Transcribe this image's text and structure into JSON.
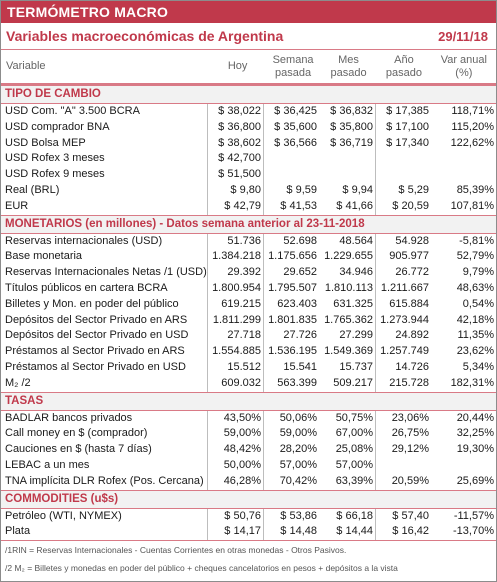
{
  "banner": "TERMÓMETRO MACRO",
  "title": "Variables macroeconómicas de Argentina",
  "date": "29/11/18",
  "columns": [
    "Variable",
    "Hoy",
    "Semana pasada",
    "Mes pasado",
    "Año pasado",
    "Var anual (%)"
  ],
  "sections": [
    {
      "title": "TIPO DE CAMBIO",
      "rows": [
        [
          "USD Com. \"A\" 3.500 BCRA",
          "$ 38,022",
          "$ 36,425",
          "$ 36,832",
          "$ 17,385",
          "118,71%"
        ],
        [
          "USD comprador BNA",
          "$ 36,800",
          "$ 35,600",
          "$ 35,800",
          "$ 17,100",
          "115,20%"
        ],
        [
          "USD Bolsa MEP",
          "$ 38,602",
          "$ 36,566",
          "$ 36,719",
          "$ 17,340",
          "122,62%"
        ],
        [
          "USD Rofex 3 meses",
          "$ 42,700",
          "",
          "",
          "",
          ""
        ],
        [
          "USD Rofex 9 meses",
          "$ 51,500",
          "",
          "",
          "",
          ""
        ],
        [
          "Real (BRL)",
          "$ 9,80",
          "$ 9,59",
          "$ 9,94",
          "$ 5,29",
          "85,39%"
        ],
        [
          "EUR",
          "$ 42,79",
          "$ 41,53",
          "$ 41,66",
          "$ 20,59",
          "107,81%"
        ]
      ]
    },
    {
      "title": "MONETARIOS (en millones) - Datos semana anterior al 23-11-2018",
      "rows": [
        [
          "Reservas internacionales (USD)",
          "51.736",
          "52.698",
          "48.564",
          "54.928",
          "-5,81%"
        ],
        [
          "Base monetaria",
          "1.384.218",
          "1.175.656",
          "1.229.655",
          "905.977",
          "52,79%"
        ],
        [
          "Reservas Internacionales Netas /1 (USD)",
          "29.392",
          "29.652",
          "34.946",
          "26.772",
          "9,79%"
        ],
        [
          "Títulos públicos en cartera BCRA",
          "1.800.954",
          "1.795.507",
          "1.810.113",
          "1.211.667",
          "48,63%"
        ],
        [
          "Billetes y Mon. en poder del público",
          "619.215",
          "623.403",
          "631.325",
          "615.884",
          "0,54%"
        ],
        [
          "Depósitos del Sector Privado en ARS",
          "1.811.299",
          "1.801.835",
          "1.765.362",
          "1.273.944",
          "42,18%"
        ],
        [
          "Depósitos del Sector Privado en USD",
          "27.718",
          "27.726",
          "27.299",
          "24.892",
          "11,35%"
        ],
        [
          "Préstamos al Sector Privado en ARS",
          "1.554.885",
          "1.536.195",
          "1.549.369",
          "1.257.749",
          "23,62%"
        ],
        [
          "Préstamos al Sector Privado en USD",
          "15.512",
          "15.541",
          "15.737",
          "14.726",
          "5,34%"
        ],
        [
          "M₂ /2",
          "609.032",
          "563.399",
          "509.217",
          "215.728",
          "182,31%"
        ]
      ]
    },
    {
      "title": "TASAS",
      "rows": [
        [
          "BADLAR bancos privados",
          "43,50%",
          "50,06%",
          "50,75%",
          "23,06%",
          "20,44%"
        ],
        [
          "Call money en $ (comprador)",
          "59,00%",
          "59,00%",
          "67,00%",
          "26,75%",
          "32,25%"
        ],
        [
          "Cauciones en $ (hasta 7 días)",
          "48,42%",
          "28,20%",
          "25,08%",
          "29,12%",
          "19,30%"
        ],
        [
          "LEBAC a un mes",
          "50,00%",
          "57,00%",
          "57,00%",
          "",
          ""
        ],
        [
          "TNA implícita DLR Rofex (Pos. Cercana)",
          "46,28%",
          "70,42%",
          "63,39%",
          "20,59%",
          "25,69%"
        ]
      ]
    },
    {
      "title": "COMMODITIES (u$s)",
      "rows": [
        [
          "Petróleo (WTI, NYMEX)",
          "$ 50,76",
          "$ 53,86",
          "$ 66,18",
          "$ 57,40",
          "-11,57%"
        ],
        [
          "Plata",
          "$ 14,17",
          "$ 14,48",
          "$ 14,44",
          "$ 16,42",
          "-13,70%"
        ]
      ]
    }
  ],
  "footnotes": [
    "/1RIN = Reservas Internacionales - Cuentas Corrientes en otras monedas - Otros Pasivos.",
    "/2 M₂ = Billetes y monedas en poder del público + cheques cancelatorios en pesos + depósitos a la vista"
  ]
}
